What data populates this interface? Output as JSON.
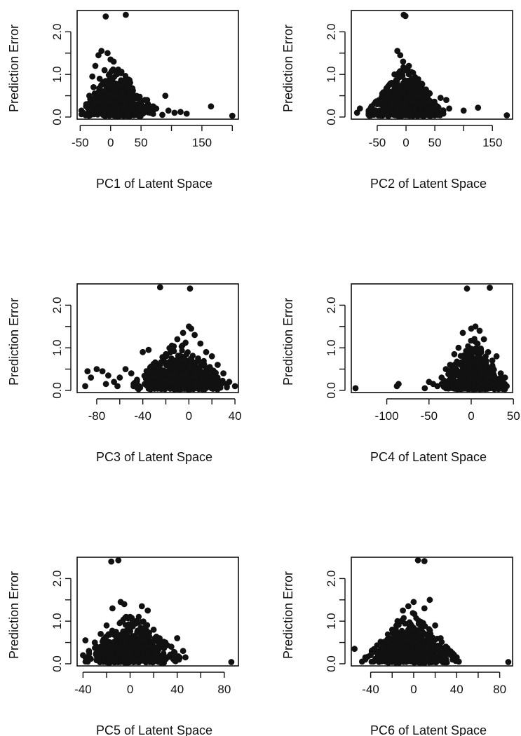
{
  "chart_data": [
    {
      "type": "scatter",
      "panel": "PC1",
      "title": "",
      "xlabel": "PC1 of Latent Space",
      "ylabel": "Prediction Error",
      "xlim": [
        -55,
        210
      ],
      "ylim": [
        -0.05,
        2.5
      ],
      "xticks": [
        -50,
        0,
        50,
        100,
        150,
        200
      ],
      "xtick_labels": [
        "-50",
        "0",
        "50",
        "",
        "150",
        ""
      ],
      "yticks": [
        0.0,
        0.5,
        1.0,
        1.5,
        2.0
      ],
      "ytick_labels": [
        "0.0",
        "",
        "1.0",
        "",
        "2.0"
      ],
      "grid": false,
      "marker_color": "#111111",
      "points": [
        [
          -8,
          2.36
        ],
        [
          25,
          2.4
        ],
        [
          -30,
          0.95
        ],
        [
          -25,
          1.2
        ],
        [
          -20,
          1.45
        ],
        [
          -15,
          1.55
        ],
        [
          -5,
          1.5
        ],
        [
          0,
          1.35
        ],
        [
          5,
          1.3
        ],
        [
          -10,
          1.1
        ],
        [
          10,
          1.0
        ],
        [
          20,
          0.8
        ],
        [
          30,
          0.7
        ],
        [
          40,
          0.5
        ],
        [
          -40,
          0.3
        ],
        [
          -45,
          0.1
        ],
        [
          -35,
          0.5
        ],
        [
          -28,
          0.7
        ],
        [
          -18,
          0.9
        ],
        [
          -12,
          0.6
        ],
        [
          -2,
          0.75
        ],
        [
          8,
          0.6
        ],
        [
          15,
          0.4
        ],
        [
          25,
          0.3
        ],
        [
          35,
          0.25
        ],
        [
          45,
          0.2
        ],
        [
          55,
          0.15
        ],
        [
          60,
          0.4
        ],
        [
          65,
          0.1
        ],
        [
          75,
          0.2
        ],
        [
          85,
          0.05
        ],
        [
          90,
          0.5
        ],
        [
          95,
          0.15
        ],
        [
          105,
          0.1
        ],
        [
          115,
          0.12
        ],
        [
          125,
          0.08
        ],
        [
          165,
          0.25
        ],
        [
          200,
          0.03
        ],
        [
          50,
          0.3
        ],
        [
          70,
          0.25
        ],
        [
          -22,
          0.2
        ],
        [
          -32,
          0.15
        ],
        [
          -6,
          0.2
        ],
        [
          4,
          0.1
        ],
        [
          12,
          0.25
        ],
        [
          22,
          0.15
        ],
        [
          -38,
          0.05
        ],
        [
          0,
          0.05
        ],
        [
          30,
          0.05
        ],
        [
          -16,
          0.35
        ],
        [
          -26,
          0.45
        ]
      ],
      "dense_region": {
        "x_range": [
          -48,
          70
        ],
        "y_center": 0.35
      }
    },
    {
      "type": "scatter",
      "panel": "PC2",
      "title": "",
      "xlabel": "PC2 of Latent Space",
      "ylabel": "Prediction Error",
      "xlim": [
        -95,
        185
      ],
      "ylim": [
        -0.05,
        2.5
      ],
      "xticks": [
        -50,
        0,
        50,
        100,
        150
      ],
      "xtick_labels": [
        "-50",
        "0",
        "50",
        "",
        "150"
      ],
      "yticks": [
        0.0,
        0.5,
        1.0,
        1.5,
        2.0
      ],
      "ytick_labels": [
        "0.0",
        "",
        "1.0",
        "",
        "2.0"
      ],
      "grid": false,
      "marker_color": "#111111",
      "points": [
        [
          -4,
          2.4
        ],
        [
          -1,
          2.37
        ],
        [
          -15,
          1.55
        ],
        [
          -10,
          1.45
        ],
        [
          -5,
          1.3
        ],
        [
          5,
          1.2
        ],
        [
          0,
          1.1
        ],
        [
          -20,
          1.0
        ],
        [
          10,
          0.9
        ],
        [
          15,
          0.7
        ],
        [
          -30,
          0.6
        ],
        [
          -40,
          0.4
        ],
        [
          -50,
          0.3
        ],
        [
          -60,
          0.25
        ],
        [
          -80,
          0.2
        ],
        [
          -85,
          0.1
        ],
        [
          20,
          0.5
        ],
        [
          30,
          0.4
        ],
        [
          40,
          0.35
        ],
        [
          50,
          0.3
        ],
        [
          60,
          0.45
        ],
        [
          70,
          0.4
        ],
        [
          75,
          0.2
        ],
        [
          100,
          0.15
        ],
        [
          125,
          0.22
        ],
        [
          175,
          0.04
        ],
        [
          -25,
          0.8
        ],
        [
          -12,
          0.7
        ],
        [
          8,
          0.6
        ],
        [
          -35,
          0.15
        ],
        [
          -55,
          0.1
        ],
        [
          35,
          0.1
        ],
        [
          45,
          0.15
        ],
        [
          55,
          0.05
        ],
        [
          0,
          0.05
        ],
        [
          -18,
          0.3
        ],
        [
          25,
          0.25
        ]
      ],
      "dense_region": {
        "x_range": [
          -65,
          65
        ],
        "y_center": 0.35
      }
    },
    {
      "type": "scatter",
      "panel": "PC3",
      "title": "",
      "xlabel": "PC3 of Latent Space",
      "ylabel": "Prediction Error",
      "xlim": [
        -97,
        43
      ],
      "ylim": [
        -0.05,
        2.5
      ],
      "xticks": [
        -80,
        -60,
        -40,
        -20,
        0,
        20,
        40
      ],
      "xtick_labels": [
        "-80",
        "",
        "-40",
        "",
        "0",
        "",
        "40"
      ],
      "yticks": [
        0.0,
        0.5,
        1.0,
        1.5,
        2.0
      ],
      "ytick_labels": [
        "0.0",
        "",
        "1.0",
        "",
        "2.0"
      ],
      "grid": false,
      "marker_color": "#111111",
      "points": [
        [
          -25,
          2.42
        ],
        [
          1,
          2.39
        ],
        [
          0,
          1.5
        ],
        [
          2,
          1.45
        ],
        [
          -5,
          1.35
        ],
        [
          5,
          1.3
        ],
        [
          -10,
          1.2
        ],
        [
          10,
          1.1
        ],
        [
          -15,
          1.0
        ],
        [
          15,
          0.9
        ],
        [
          -35,
          0.95
        ],
        [
          -40,
          0.9
        ],
        [
          20,
          0.8
        ],
        [
          -20,
          0.85
        ],
        [
          25,
          0.6
        ],
        [
          30,
          0.4
        ],
        [
          35,
          0.2
        ],
        [
          40,
          0.1
        ],
        [
          -50,
          0.4
        ],
        [
          -55,
          0.5
        ],
        [
          -60,
          0.3
        ],
        [
          -65,
          0.2
        ],
        [
          -70,
          0.35
        ],
        [
          -75,
          0.45
        ],
        [
          -80,
          0.5
        ],
        [
          -85,
          0.3
        ],
        [
          -88,
          0.45
        ],
        [
          -90,
          0.1
        ],
        [
          -72,
          0.15
        ],
        [
          -62,
          0.1
        ],
        [
          -45,
          0.25
        ],
        [
          -30,
          0.6
        ],
        [
          -12,
          0.7
        ],
        [
          8,
          0.75
        ],
        [
          18,
          0.35
        ],
        [
          -2,
          0.2
        ],
        [
          28,
          0.15
        ],
        [
          -48,
          0.1
        ]
      ],
      "dense_region": {
        "x_range": [
          -48,
          33
        ],
        "y_center": 0.35
      }
    },
    {
      "type": "scatter",
      "panel": "PC4",
      "title": "",
      "xlabel": "PC4 of Latent Space",
      "ylabel": "Prediction Error",
      "xlim": [
        -142,
        49
      ],
      "ylim": [
        -0.05,
        2.5
      ],
      "xticks": [
        -100,
        -50,
        0,
        50
      ],
      "xtick_labels": [
        "-100",
        "-50",
        "0",
        "50"
      ],
      "yticks": [
        0.0,
        0.5,
        1.0,
        1.5,
        2.0
      ],
      "ytick_labels": [
        "0.0",
        "",
        "1.0",
        "",
        "2.0"
      ],
      "grid": false,
      "marker_color": "#111111",
      "points": [
        [
          -5,
          2.39
        ],
        [
          22,
          2.41
        ],
        [
          5,
          1.5
        ],
        [
          0,
          1.45
        ],
        [
          10,
          1.4
        ],
        [
          -10,
          1.35
        ],
        [
          15,
          1.2
        ],
        [
          -15,
          1.0
        ],
        [
          20,
          0.9
        ],
        [
          -20,
          0.85
        ],
        [
          25,
          0.7
        ],
        [
          30,
          0.8
        ],
        [
          -25,
          0.6
        ],
        [
          35,
          0.4
        ],
        [
          40,
          0.3
        ],
        [
          42,
          0.1
        ],
        [
          -30,
          0.5
        ],
        [
          -35,
          0.3
        ],
        [
          -40,
          0.1
        ],
        [
          -45,
          0.15
        ],
        [
          -50,
          0.2
        ],
        [
          -55,
          0.05
        ],
        [
          -88,
          0.1
        ],
        [
          -86,
          0.15
        ],
        [
          -137,
          0.05
        ],
        [
          -8,
          0.6
        ],
        [
          8,
          0.7
        ],
        [
          2,
          0.9
        ],
        [
          -2,
          0.25
        ],
        [
          12,
          0.35
        ],
        [
          -18,
          0.2
        ],
        [
          28,
          0.15
        ]
      ],
      "dense_region": {
        "x_range": [
          -35,
          40
        ],
        "y_center": 0.35
      }
    },
    {
      "type": "scatter",
      "panel": "PC5",
      "title": "",
      "xlabel": "PC5 of Latent Space",
      "ylabel": "Prediction Error",
      "xlim": [
        -45,
        92
      ],
      "ylim": [
        -0.05,
        2.5
      ],
      "xticks": [
        -40,
        -20,
        0,
        20,
        40,
        60,
        80
      ],
      "xtick_labels": [
        "-40",
        "",
        "0",
        "",
        "40",
        "",
        "80"
      ],
      "yticks": [
        0.0,
        0.5,
        1.0,
        1.5,
        2.0
      ],
      "ytick_labels": [
        "0.0",
        "",
        "1.0",
        "",
        "2.0"
      ],
      "grid": false,
      "marker_color": "#111111",
      "points": [
        [
          -16,
          2.4
        ],
        [
          -10,
          2.43
        ],
        [
          -8,
          1.45
        ],
        [
          -5,
          1.4
        ],
        [
          -15,
          1.3
        ],
        [
          10,
          1.35
        ],
        [
          15,
          1.25
        ],
        [
          0,
          1.1
        ],
        [
          5,
          1.0
        ],
        [
          -20,
          0.9
        ],
        [
          -25,
          0.7
        ],
        [
          20,
          0.8
        ],
        [
          25,
          0.6
        ],
        [
          30,
          0.5
        ],
        [
          35,
          0.4
        ],
        [
          40,
          0.6
        ],
        [
          45,
          0.3
        ],
        [
          47,
          0.15
        ],
        [
          -30,
          0.5
        ],
        [
          -35,
          0.3
        ],
        [
          -38,
          0.55
        ],
        [
          -40,
          0.2
        ],
        [
          86,
          0.04
        ],
        [
          -12,
          0.75
        ],
        [
          3,
          0.65
        ],
        [
          12,
          0.55
        ],
        [
          -2,
          0.2
        ],
        [
          22,
          0.25
        ],
        [
          -28,
          0.15
        ],
        [
          38,
          0.1
        ],
        [
          -36,
          0.05
        ]
      ],
      "dense_region": {
        "x_range": [
          -38,
          42
        ],
        "y_center": 0.35
      }
    },
    {
      "type": "scatter",
      "panel": "PC6",
      "title": "",
      "xlabel": "PC6 of Latent Space",
      "ylabel": "Prediction Error",
      "xlim": [
        -58,
        92
      ],
      "ylim": [
        -0.05,
        2.5
      ],
      "xticks": [
        -40,
        -20,
        0,
        20,
        40,
        60,
        80
      ],
      "xtick_labels": [
        "-40",
        "",
        "0",
        "",
        "40",
        "",
        "80"
      ],
      "yticks": [
        0.0,
        0.5,
        1.0,
        1.5,
        2.0
      ],
      "ytick_labels": [
        "0.0",
        "",
        "1.0",
        "",
        "2.0"
      ],
      "grid": false,
      "marker_color": "#111111",
      "points": [
        [
          4,
          2.43
        ],
        [
          10,
          2.41
        ],
        [
          -5,
          1.35
        ],
        [
          0,
          1.45
        ],
        [
          -10,
          1.25
        ],
        [
          10,
          1.3
        ],
        [
          15,
          1.5
        ],
        [
          -15,
          1.0
        ],
        [
          20,
          0.9
        ],
        [
          -20,
          0.8
        ],
        [
          25,
          0.6
        ],
        [
          -25,
          0.5
        ],
        [
          30,
          0.4
        ],
        [
          -30,
          0.35
        ],
        [
          35,
          0.2
        ],
        [
          40,
          0.15
        ],
        [
          42,
          0.05
        ],
        [
          -35,
          0.3
        ],
        [
          -40,
          0.2
        ],
        [
          -45,
          0.1
        ],
        [
          -55,
          0.35
        ],
        [
          88,
          0.04
        ],
        [
          -2,
          0.8
        ],
        [
          6,
          0.7
        ],
        [
          -12,
          0.55
        ],
        [
          18,
          0.5
        ],
        [
          -8,
          0.2
        ],
        [
          12,
          0.15
        ],
        [
          -28,
          0.1
        ],
        [
          28,
          0.05
        ],
        [
          -48,
          0.05
        ]
      ],
      "dense_region": {
        "x_range": [
          -45,
          40
        ],
        "y_center": 0.35
      }
    }
  ]
}
